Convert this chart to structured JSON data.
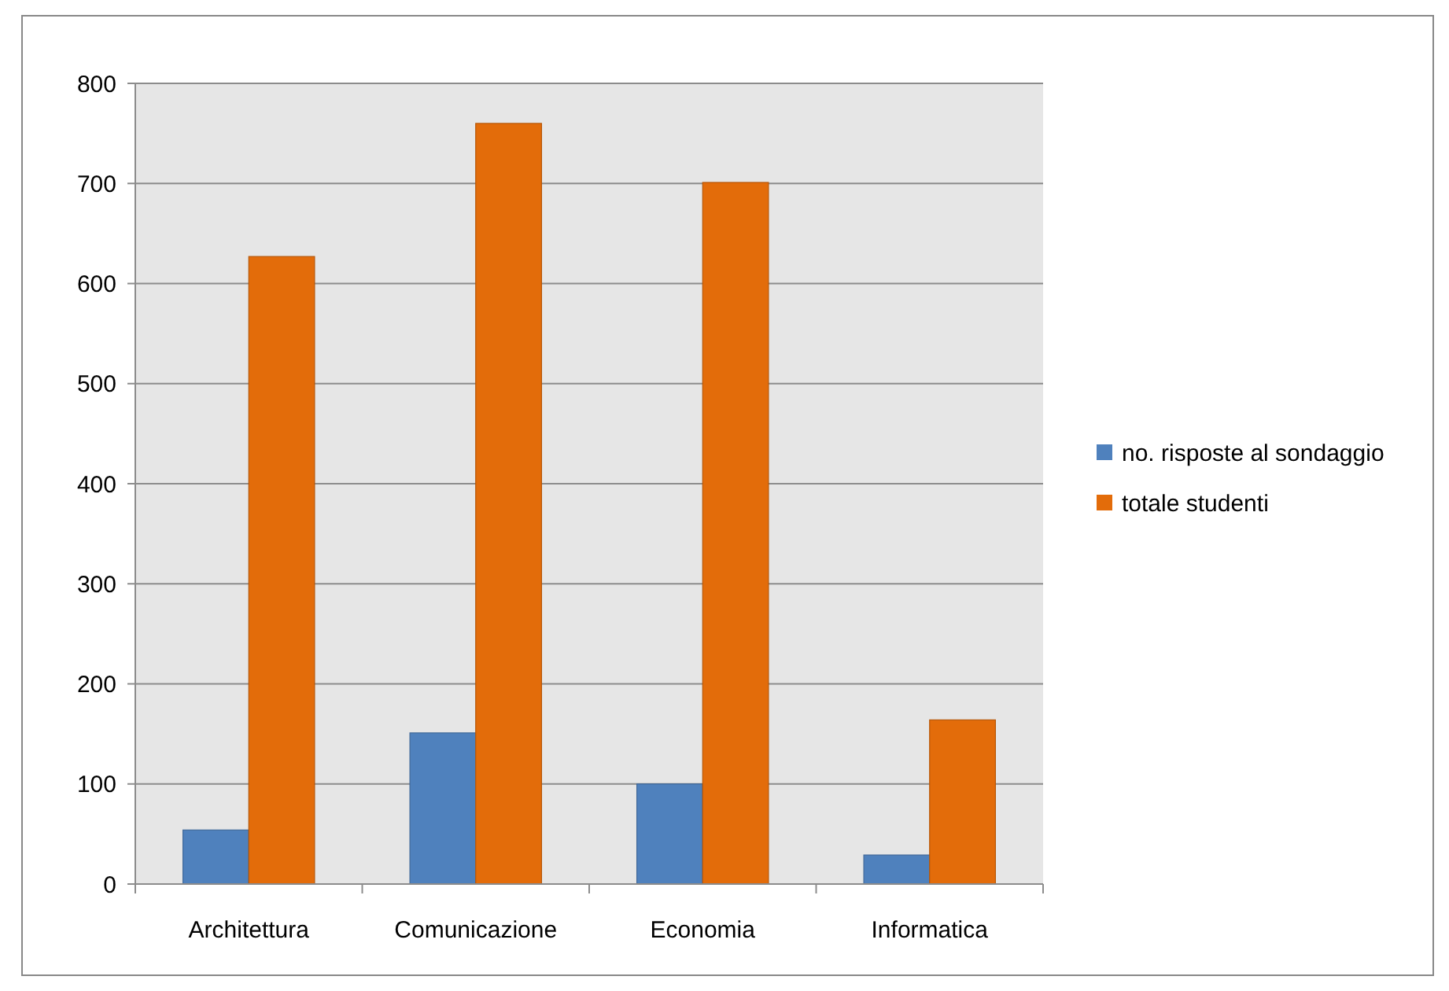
{
  "chart_data": {
    "type": "bar",
    "categories": [
      "Architettura",
      "Comunicazione",
      "Economia",
      "Informatica"
    ],
    "series": [
      {
        "name": "no. risposte al sondaggio",
        "color": "#4f81bd",
        "values": [
          54,
          151,
          100,
          29
        ]
      },
      {
        "name": "totale studenti",
        "color": "#e36c0a",
        "values": [
          627,
          760,
          701,
          164
        ]
      }
    ],
    "ylim": [
      0,
      800
    ],
    "yticks": [
      0,
      100,
      200,
      300,
      400,
      500,
      600,
      700,
      800
    ],
    "grid": "y",
    "legend": "right"
  }
}
